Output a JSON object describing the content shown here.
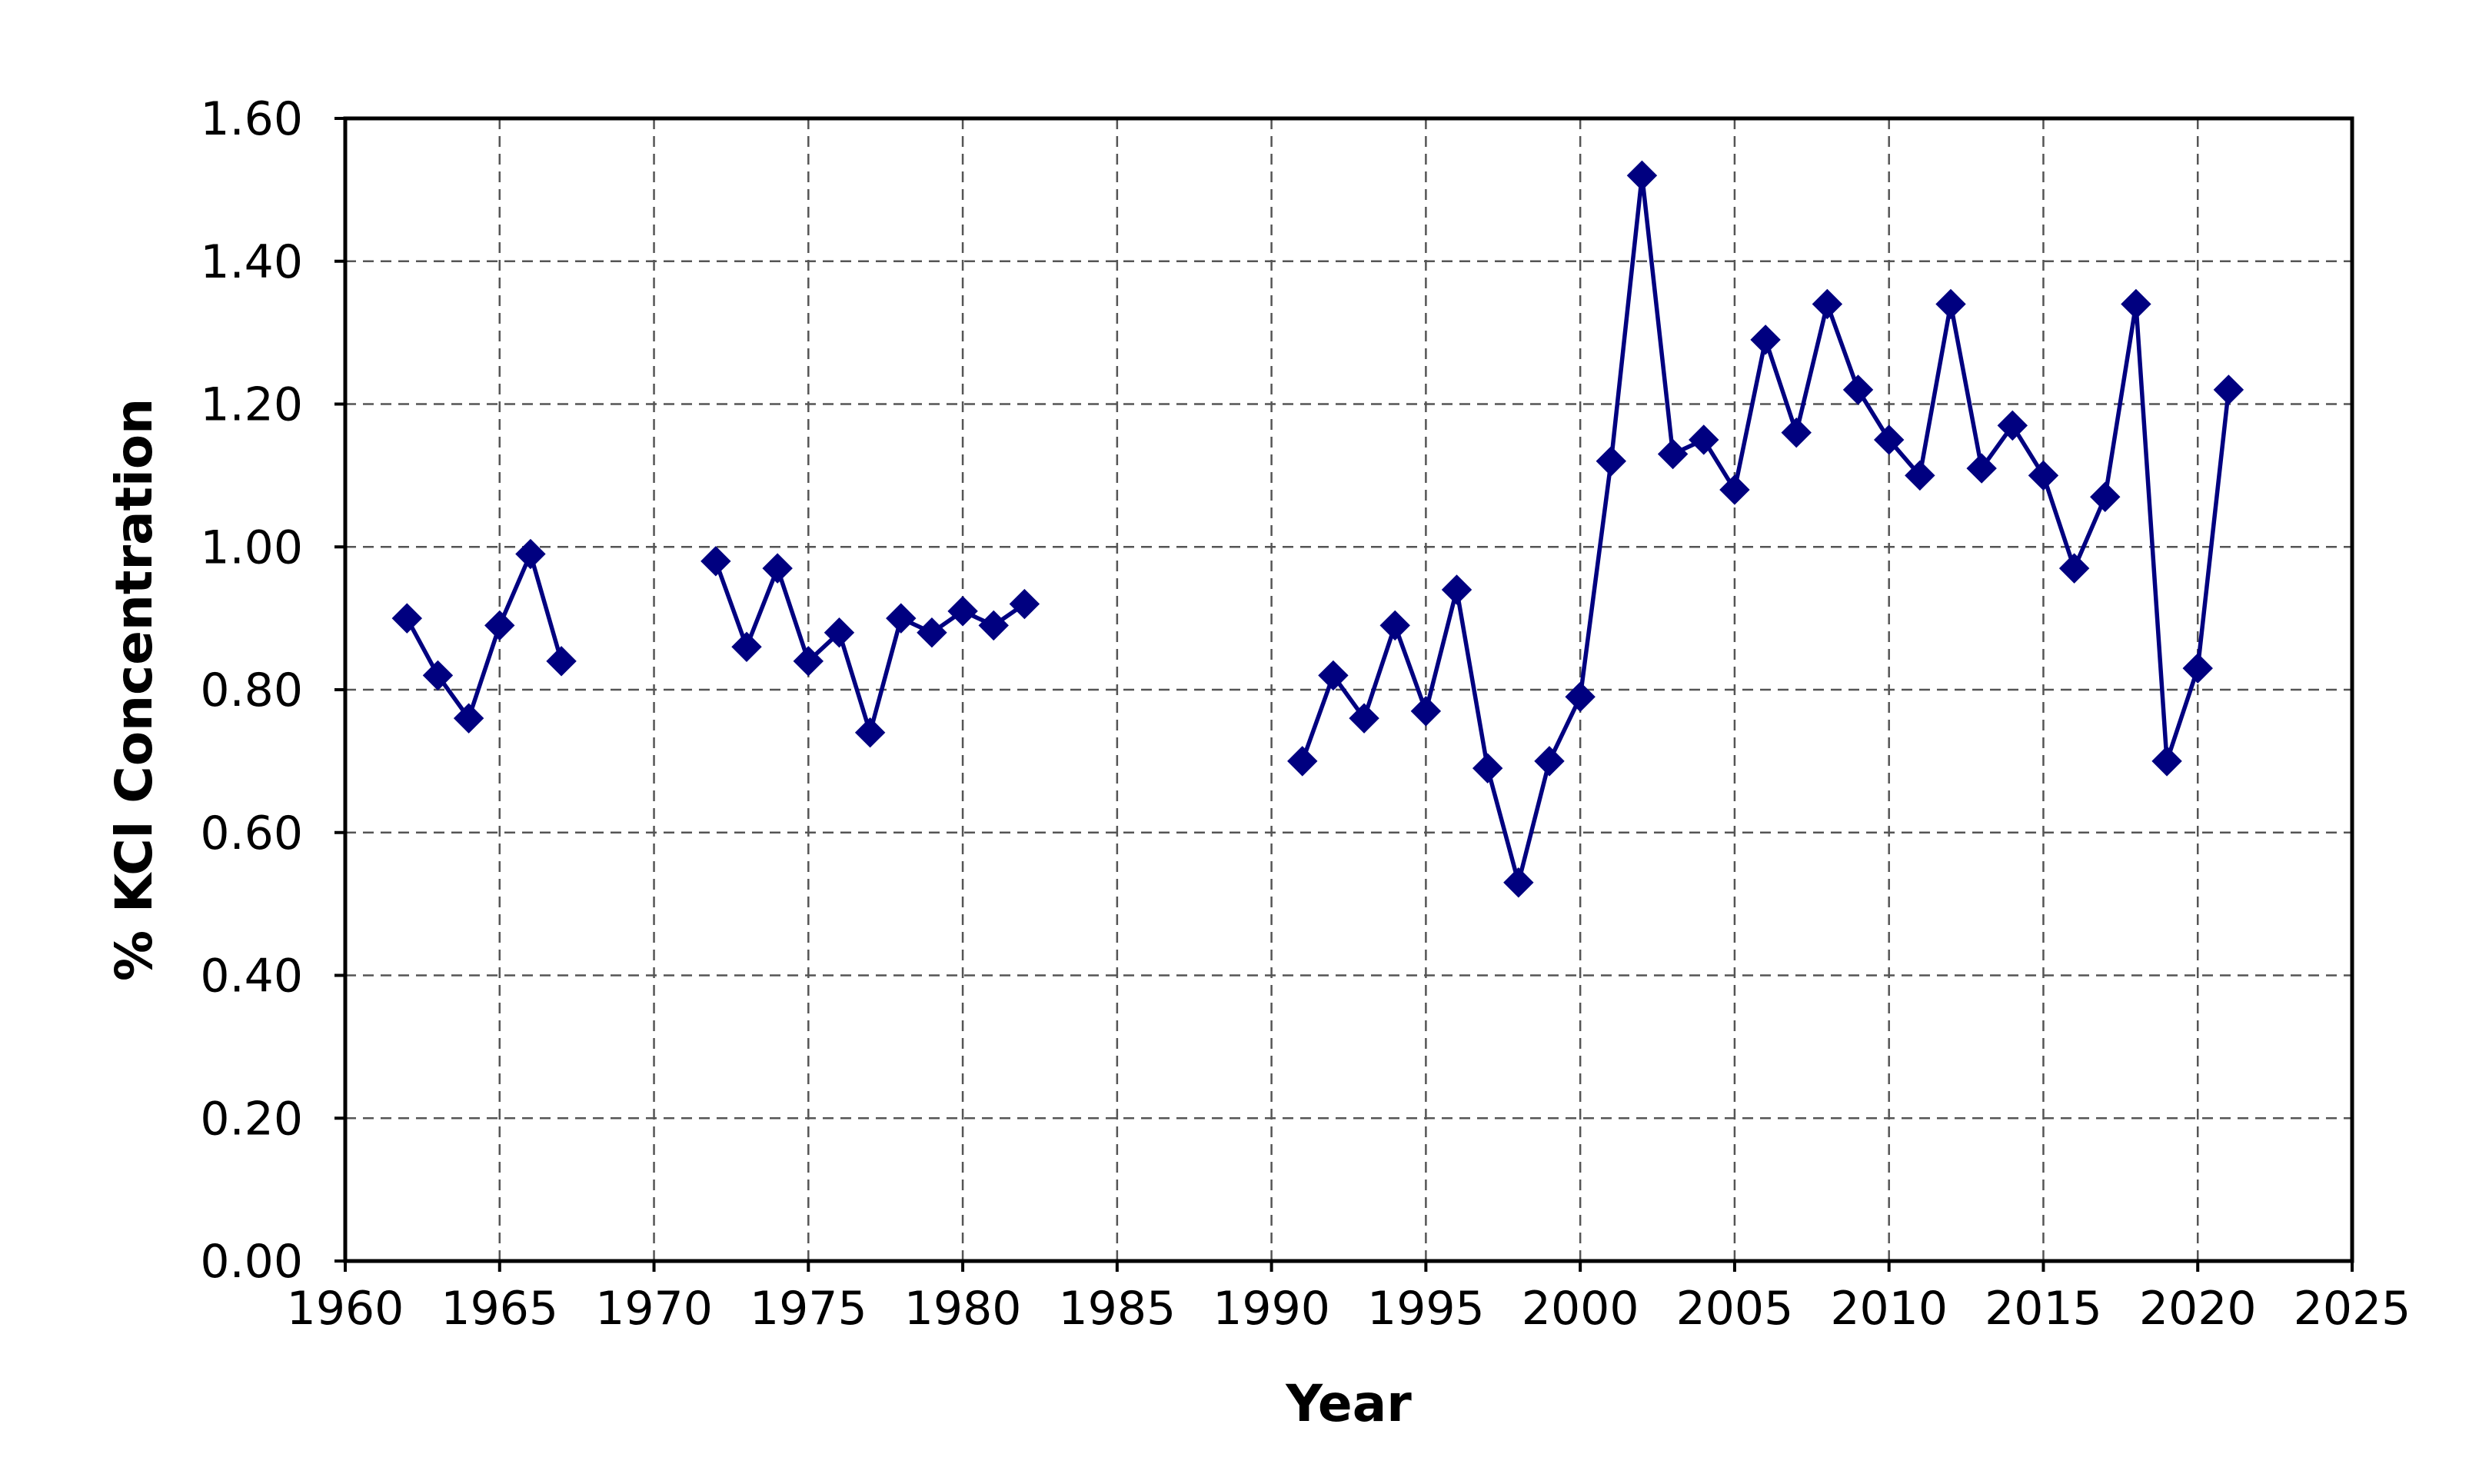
{
  "chart_data": {
    "type": "line",
    "title": "",
    "xlabel": "Year",
    "ylabel": "% KCl Concentration",
    "xlim": [
      1960,
      2025
    ],
    "ylim": [
      0,
      1.6
    ],
    "x_ticks": [
      "1960",
      "1965",
      "1970",
      "1975",
      "1980",
      "1985",
      "1990",
      "1995",
      "2000",
      "2005",
      "2010",
      "2015",
      "2020",
      "2025"
    ],
    "y_ticks": [
      "0.00",
      "0.20",
      "0.40",
      "0.60",
      "0.80",
      "1.00",
      "1.20",
      "1.40",
      "1.60"
    ],
    "grid": true,
    "legend": false,
    "marker": "diamond",
    "color": "#000080",
    "series": [
      {
        "segments": [
          {
            "x": [
              1962,
              1963,
              1964,
              1965,
              1966,
              1967
            ],
            "y": [
              0.9,
              0.82,
              0.76,
              0.89,
              0.99,
              0.84
            ]
          },
          {
            "x": [
              1972,
              1973,
              1974,
              1975,
              1976,
              1977,
              1978,
              1979,
              1980,
              1981,
              1982
            ],
            "y": [
              0.98,
              0.86,
              0.97,
              0.84,
              0.88,
              0.74,
              0.9,
              0.88,
              0.91,
              0.89,
              0.92
            ]
          },
          {
            "x": [
              1991,
              1992,
              1993,
              1994,
              1995,
              1996,
              1997,
              1998,
              1999,
              2000,
              2001,
              2002,
              2003,
              2004,
              2005,
              2006,
              2007,
              2008,
              2009,
              2010,
              2011,
              2012,
              2013,
              2014,
              2015,
              2016,
              2017,
              2018,
              2019,
              2020,
              2021
            ],
            "y": [
              0.7,
              0.82,
              0.76,
              0.89,
              0.77,
              0.94,
              0.69,
              0.53,
              0.7,
              0.79,
              1.12,
              1.52,
              1.13,
              1.15,
              1.08,
              1.29,
              1.16,
              1.34,
              1.22,
              1.15,
              1.1,
              1.34,
              1.11,
              1.17,
              1.1,
              0.97,
              1.07,
              1.34,
              0.7,
              0.83,
              1.22
            ]
          }
        ]
      }
    ]
  }
}
